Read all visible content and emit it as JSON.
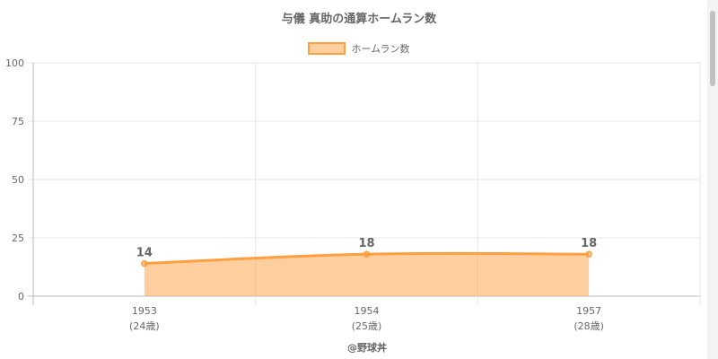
{
  "chart_data": {
    "type": "area",
    "title": "与儀 真助の通算ホームラン数",
    "categories": [
      "1953",
      "1954",
      "1957"
    ],
    "category_sublabels": [
      "(24歳)",
      "(25歳)",
      "(28歳)"
    ],
    "series": [
      {
        "name": "ホームラン数",
        "values": [
          14,
          18,
          18
        ],
        "color": "#ff9f40"
      }
    ],
    "y_ticks": [
      0,
      25,
      50,
      75,
      100
    ],
    "ylim": [
      0,
      100
    ],
    "grid": true,
    "legend_position": "top",
    "source": "@野球丼"
  }
}
